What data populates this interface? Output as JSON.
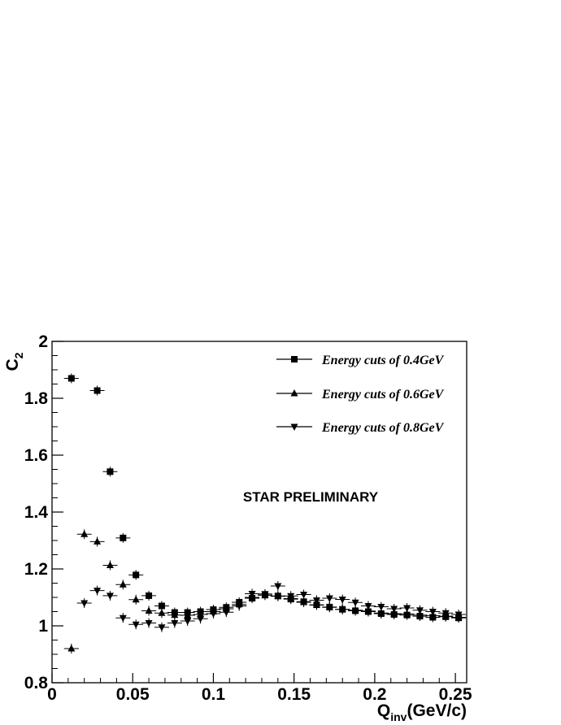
{
  "chart_data": {
    "type": "scatter",
    "title": "",
    "xlabel": {
      "main": "Q",
      "sub": "inv",
      "suffix": "(GeV/c)"
    },
    "ylabel": {
      "main": "C",
      "sub": "2"
    },
    "xlim": [
      0,
      0.257
    ],
    "ylim": [
      0.8,
      2.0
    ],
    "x_ticks": [
      {
        "value": 0,
        "label": "0"
      },
      {
        "value": 0.05,
        "label": "0.05"
      },
      {
        "value": 0.1,
        "label": "0.1"
      },
      {
        "value": 0.15,
        "label": "0.15"
      },
      {
        "value": 0.2,
        "label": "0.2"
      },
      {
        "value": 0.25,
        "label": "0.25"
      }
    ],
    "y_ticks": [
      {
        "value": 0.8,
        "label": "0.8"
      },
      {
        "value": 1.0,
        "label": "1"
      },
      {
        "value": 1.2,
        "label": "1.2"
      },
      {
        "value": 1.4,
        "label": "1.4"
      },
      {
        "value": 1.6,
        "label": "1.6"
      },
      {
        "value": 1.8,
        "label": "1.8"
      },
      {
        "value": 2.0,
        "label": "2"
      }
    ],
    "grid": false,
    "legend": {
      "placement": "top-right"
    },
    "annotation": "STAR PRELIMINARY",
    "series": [
      {
        "name": "Energy cuts of 0.4GeV",
        "marker": "square",
        "points": [
          [
            0.012,
            1.87
          ],
          [
            0.028,
            1.827
          ],
          [
            0.036,
            1.542
          ],
          [
            0.044,
            1.309
          ],
          [
            0.052,
            1.179
          ],
          [
            0.06,
            1.106
          ],
          [
            0.068,
            1.07
          ],
          [
            0.076,
            1.047
          ],
          [
            0.084,
            1.047
          ],
          [
            0.092,
            1.05
          ],
          [
            0.1,
            1.057
          ],
          [
            0.108,
            1.065
          ],
          [
            0.116,
            1.083
          ],
          [
            0.124,
            1.097
          ],
          [
            0.132,
            1.108
          ],
          [
            0.14,
            1.105
          ],
          [
            0.148,
            1.094
          ],
          [
            0.156,
            1.085
          ],
          [
            0.164,
            1.074
          ],
          [
            0.172,
            1.066
          ],
          [
            0.18,
            1.058
          ],
          [
            0.188,
            1.053
          ],
          [
            0.196,
            1.05
          ],
          [
            0.204,
            1.043
          ],
          [
            0.212,
            1.04
          ],
          [
            0.22,
            1.038
          ],
          [
            0.228,
            1.034
          ],
          [
            0.236,
            1.03
          ],
          [
            0.244,
            1.032
          ],
          [
            0.252,
            1.028
          ]
        ]
      },
      {
        "name": "Energy cuts of 0.6GeV",
        "marker": "triangle-up",
        "points": [
          [
            0.012,
            0.92
          ],
          [
            0.02,
            1.322
          ],
          [
            0.028,
            1.296
          ],
          [
            0.036,
            1.213
          ],
          [
            0.044,
            1.145
          ],
          [
            0.052,
            1.092
          ],
          [
            0.06,
            1.053
          ],
          [
            0.068,
            1.045
          ],
          [
            0.076,
            1.038
          ],
          [
            0.084,
            1.037
          ],
          [
            0.092,
            1.04
          ],
          [
            0.1,
            1.05
          ],
          [
            0.108,
            1.06
          ],
          [
            0.116,
            1.075
          ],
          [
            0.124,
            1.1
          ],
          [
            0.132,
            1.108
          ],
          [
            0.14,
            1.104
          ],
          [
            0.148,
            1.096
          ],
          [
            0.156,
            1.083
          ],
          [
            0.164,
            1.073
          ],
          [
            0.172,
            1.065
          ],
          [
            0.18,
            1.058
          ],
          [
            0.188,
            1.055
          ],
          [
            0.196,
            1.052
          ],
          [
            0.204,
            1.045
          ],
          [
            0.212,
            1.043
          ],
          [
            0.22,
            1.042
          ],
          [
            0.228,
            1.038
          ],
          [
            0.236,
            1.036
          ],
          [
            0.244,
            1.034
          ],
          [
            0.252,
            1.03
          ]
        ]
      },
      {
        "name": "Energy cuts of 0.8GeV",
        "marker": "triangle-down",
        "points": [
          [
            0.02,
            1.08
          ],
          [
            0.028,
            1.124
          ],
          [
            0.036,
            1.106
          ],
          [
            0.044,
            1.028
          ],
          [
            0.052,
            1.005
          ],
          [
            0.06,
            1.01
          ],
          [
            0.068,
            0.995
          ],
          [
            0.076,
            1.01
          ],
          [
            0.084,
            1.017
          ],
          [
            0.092,
            1.025
          ],
          [
            0.1,
            1.043
          ],
          [
            0.108,
            1.048
          ],
          [
            0.116,
            1.07
          ],
          [
            0.124,
            1.113
          ],
          [
            0.132,
            1.112
          ],
          [
            0.14,
            1.14
          ],
          [
            0.148,
            1.105
          ],
          [
            0.156,
            1.11
          ],
          [
            0.164,
            1.09
          ],
          [
            0.172,
            1.097
          ],
          [
            0.18,
            1.093
          ],
          [
            0.188,
            1.082
          ],
          [
            0.196,
            1.07
          ],
          [
            0.204,
            1.067
          ],
          [
            0.212,
            1.06
          ],
          [
            0.22,
            1.063
          ],
          [
            0.228,
            1.055
          ],
          [
            0.236,
            1.05
          ],
          [
            0.244,
            1.045
          ],
          [
            0.252,
            1.04
          ]
        ]
      }
    ]
  }
}
